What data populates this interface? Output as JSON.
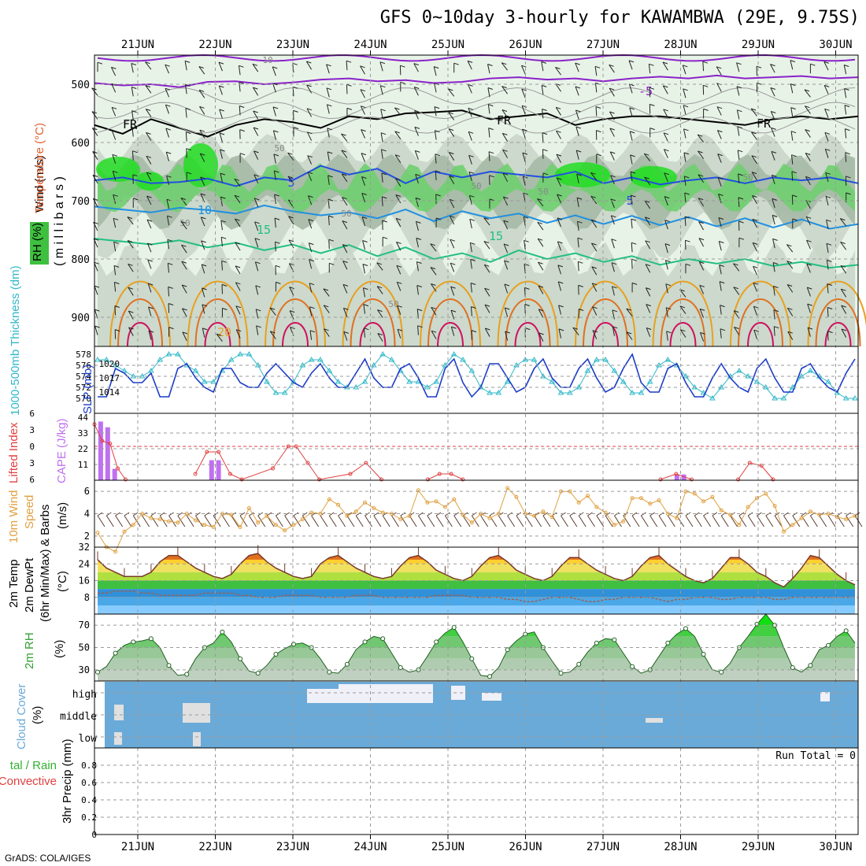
{
  "title": "GFS 0~10day 3-hourly for KAWAMBWA (29E, 9.75S)",
  "credit": "GrADS: COLA/IGES",
  "colors": {
    "grid": "#9a9a9a",
    "rh_fill": [
      "#e8f3e8",
      "#c9d6c9",
      "#a6b8a6",
      "#6fcf6f",
      "#22dd22"
    ],
    "temp_m5": "#8a22c8",
    "temp_5": "#2050e0",
    "temp_10": "#2090e0",
    "temp_15": "#22c080",
    "temp_20": "#e8a020",
    "temp_25": "#e07020",
    "temp_30": "#d01060",
    "slp": "#1a3cc8",
    "thickness": "#30b8c8",
    "cape": "#c070f0",
    "li": "#e04040",
    "wind": "#e0a040",
    "dewpt": "#a06050",
    "rh2m": "#40b040",
    "cloud": "#6aaad8"
  },
  "chart_data": [
    {
      "type": "heatmap",
      "name_panel": "upper-air",
      "xlabels": [
        "21JUN",
        "22JUN",
        "23JUN",
        "24JUN",
        "25JUN",
        "26JUN",
        "27JUN",
        "28JUN",
        "29JUN",
        "30JUN"
      ],
      "ylabel": "Wind (m/s)",
      "ylabel_temp": "Temperature (°C)",
      "ylabel_rh": "RH (%)",
      "ylabel_units": "(millibars)",
      "yticks": [
        500,
        600,
        700,
        800,
        900
      ],
      "ylim": [
        450,
        950
      ],
      "contour_labels": [
        "10",
        "-5",
        "FR",
        "FR",
        "FR",
        "50",
        "5",
        "50",
        "50",
        "5",
        "50",
        "10",
        "50",
        "50",
        "15",
        "15",
        "20",
        "50"
      ],
      "temp_levels": [
        {
          "label": "-5",
          "p": [
            498,
            502,
            500,
            505,
            496,
            495,
            500,
            497,
            492,
            490,
            495,
            493,
            498,
            496,
            490,
            488,
            492,
            490,
            495,
            490,
            487,
            490,
            485,
            490,
            488,
            486,
            490,
            488
          ]
        },
        {
          "label": "FR",
          "p": [
            570,
            585,
            560,
            575,
            590,
            570,
            560,
            565,
            575,
            555,
            560,
            550,
            548,
            545,
            560,
            555,
            550,
            570,
            560,
            555,
            555,
            560,
            565,
            570,
            560,
            555,
            560,
            555
          ]
        },
        {
          "label": "5",
          "p": [
            665,
            660,
            670,
            668,
            662,
            675,
            660,
            665,
            640,
            655,
            645,
            670,
            650,
            660,
            650,
            655,
            660,
            650,
            670,
            660,
            672,
            665,
            660,
            670,
            660,
            665,
            660,
            670
          ]
        },
        {
          "label": "10",
          "p": [
            710,
            715,
            720,
            712,
            716,
            722,
            708,
            718,
            725,
            720,
            730,
            715,
            735,
            718,
            730,
            722,
            738,
            725,
            740,
            726,
            742,
            728,
            744,
            730,
            746,
            732,
            748,
            740
          ]
        },
        {
          "label": "15",
          "p": [
            765,
            770,
            775,
            768,
            780,
            772,
            785,
            775,
            790,
            776,
            795,
            780,
            800,
            790,
            805,
            785,
            800,
            790,
            805,
            795,
            810,
            800,
            808,
            800,
            812,
            805,
            815,
            810
          ]
        }
      ]
    },
    {
      "type": "line",
      "name_panel": "slp-thickness",
      "ylabel_left": "1000-500mb Thickness (dm)",
      "ylabel_right": "SLP (mb)",
      "yticks_left": [
        570,
        572,
        574,
        576,
        578
      ],
      "yticks_right": [
        1014,
        1017,
        1020
      ],
      "series": [
        {
          "name": "SLP (mb)",
          "values": [
            1013,
            1013,
            1019,
            1018,
            1016,
            1016,
            1018,
            1013,
            1013,
            1019,
            1020,
            1017,
            1015,
            1014,
            1019,
            1019,
            1016,
            1015,
            1015,
            1018,
            1020,
            1018,
            1016,
            1015,
            1018,
            1020,
            1017,
            1015,
            1015,
            1018,
            1021,
            1017,
            1015,
            1015,
            1019,
            1020,
            1017,
            1013,
            1013,
            1019,
            1021,
            1016,
            1013,
            1015,
            1020,
            1020,
            1017,
            1014,
            1015,
            1019,
            1021,
            1017,
            1015,
            1015,
            1019,
            1021,
            1017,
            1014,
            1015,
            1019,
            1022,
            1016,
            1014,
            1014,
            1019,
            1020,
            1016,
            1013,
            1013,
            1017,
            1020,
            1017,
            1015,
            1014,
            1019,
            1021,
            1017,
            1014,
            1014,
            1019,
            1020,
            1017,
            1015,
            1014,
            1018,
            1021
          ]
        },
        {
          "name": "1000-500mb Thickness (dm)",
          "values": [
            577,
            577,
            576,
            575,
            574,
            574,
            575,
            577,
            578,
            578,
            576,
            575,
            573,
            573,
            575,
            577,
            578,
            578,
            576,
            573,
            571,
            571,
            573,
            576,
            577,
            577,
            575,
            573,
            572,
            572,
            573,
            576,
            578,
            577,
            575,
            573,
            573,
            572,
            573,
            576,
            578,
            577,
            575,
            572,
            571,
            571,
            573,
            576,
            577,
            577,
            574,
            573,
            571,
            571,
            572,
            575,
            577,
            577,
            575,
            573,
            571,
            571,
            573,
            576,
            577,
            576,
            574,
            572,
            571,
            570,
            572,
            574,
            575,
            574,
            573,
            572,
            570,
            570,
            572,
            574,
            575,
            574,
            573,
            571,
            570,
            570
          ]
        }
      ]
    },
    {
      "type": "bar",
      "name_panel": "cape-li",
      "ylabel_left": "Lifted Index",
      "ylabel_right": "CAPE (J/kg)",
      "yticks_left": [
        6,
        3,
        0,
        -3,
        -6
      ],
      "yticks_right": [
        11,
        22,
        33,
        44
      ],
      "ylim_cape": [
        0,
        44
      ],
      "cape_bars": [
        {
          "day": 0.05,
          "value": 41
        },
        {
          "day": 0.14,
          "value": 37
        },
        {
          "day": 0.23,
          "value": 8
        },
        {
          "day": 1.48,
          "value": 14
        },
        {
          "day": 1.57,
          "value": 14
        },
        {
          "day": 7.48,
          "value": 4
        },
        {
          "day": 7.57,
          "value": 4
        }
      ],
      "li_series": [
        {
          "day": 0.0,
          "value": -4
        },
        {
          "day": 0.1,
          "value": -1
        },
        {
          "day": 0.2,
          "value": -0.5
        },
        {
          "day": 0.3,
          "value": 4
        },
        {
          "day": 0.4,
          "value": 6
        },
        {
          "day": 1.3,
          "value": 5
        },
        {
          "day": 1.45,
          "value": 1
        },
        {
          "day": 1.6,
          "value": 1
        },
        {
          "day": 1.75,
          "value": 5
        },
        {
          "day": 1.9,
          "value": 6
        },
        {
          "day": 2.3,
          "value": 4
        },
        {
          "day": 2.5,
          "value": 0
        },
        {
          "day": 2.6,
          "value": 0
        },
        {
          "day": 2.75,
          "value": 3
        },
        {
          "day": 2.9,
          "value": 6
        },
        {
          "day": 3.3,
          "value": 5
        },
        {
          "day": 3.5,
          "value": 3
        },
        {
          "day": 3.7,
          "value": 6
        },
        {
          "day": 4.3,
          "value": 6
        },
        {
          "day": 4.45,
          "value": 5
        },
        {
          "day": 4.6,
          "value": 5
        },
        {
          "day": 4.75,
          "value": 6
        },
        {
          "day": 7.3,
          "value": 6
        },
        {
          "day": 7.5,
          "value": 5
        },
        {
          "day": 7.7,
          "value": 6
        },
        {
          "day": 8.3,
          "value": 6
        },
        {
          "day": 8.45,
          "value": 3
        },
        {
          "day": 8.6,
          "value": 3.5
        },
        {
          "day": 8.75,
          "value": 6
        }
      ]
    },
    {
      "type": "line",
      "name_panel": "wind10m",
      "ylabel": "10m Wind Speed & Barbs (m/s)",
      "yticks": [
        2,
        4,
        6
      ],
      "ylim": [
        1,
        7
      ],
      "values": [
        2.3,
        1.0,
        0.6,
        2.4,
        3.0,
        4.0,
        3.6,
        3.5,
        3.3,
        3.2,
        4.0,
        3.4,
        3.0,
        2.8,
        4.0,
        3.9,
        2.8,
        4.5,
        3.2,
        3.8,
        3.0,
        2.5,
        3.0,
        3.5,
        4.1,
        4.0,
        5.3,
        4.8,
        3.8,
        4.2,
        5.0,
        4.5,
        4.1,
        4.0,
        3.5,
        3.8,
        6.1,
        5.0,
        5.1,
        4.6,
        5.3,
        3.9,
        3.2,
        4.0,
        3.6,
        4.0,
        6.3,
        5.5,
        4.0,
        3.8,
        4.2,
        3.7,
        6.0,
        6.0,
        5.0,
        5.6,
        4.6,
        4.1,
        3.0,
        3.3,
        5.4,
        5.4,
        4.9,
        5.2,
        4.0,
        3.6,
        6.0,
        5.8,
        5.1,
        5.5,
        4.3,
        3.9,
        3.0,
        4.6,
        5.4,
        5.8,
        4.7,
        2.4,
        3.0,
        3.6,
        4.2,
        3.9,
        4.0,
        3.7,
        3.5,
        3.8
      ]
    },
    {
      "type": "area",
      "name_panel": "temp2m",
      "ylabel": "2m Temp 2m DewPt (6hr Min/Max) (°C)",
      "yticks": [
        8,
        16,
        24,
        32
      ],
      "ylim": [
        0,
        32
      ],
      "temp": [
        26,
        22,
        20,
        18,
        18,
        18,
        20,
        25,
        28,
        28,
        25,
        22,
        20,
        18,
        17,
        19,
        24,
        28,
        29,
        25,
        22,
        20,
        18,
        17,
        18,
        24,
        27,
        28,
        25,
        22,
        20,
        18,
        17,
        18,
        23,
        27,
        28,
        25,
        21,
        19,
        17,
        16,
        18,
        23,
        27,
        28,
        25,
        21,
        19,
        17,
        16,
        18,
        23,
        27,
        27,
        24,
        21,
        19,
        17,
        16,
        18,
        23,
        27,
        28,
        24,
        21,
        18,
        16,
        15,
        17,
        22,
        27,
        27,
        24,
        20,
        18,
        15,
        13,
        17,
        22,
        28,
        27,
        23,
        19,
        16,
        14
      ],
      "dewpt": [
        10,
        10,
        11,
        11,
        11,
        10,
        10,
        9,
        9,
        9,
        9,
        9,
        10,
        10,
        10,
        10,
        9,
        9,
        8,
        8,
        8,
        9,
        9,
        9,
        9,
        8,
        8,
        8,
        8,
        9,
        9,
        9,
        8,
        8,
        8,
        8,
        8,
        8,
        9,
        9,
        9,
        9,
        8,
        8,
        8,
        8,
        7,
        7,
        6,
        6,
        7,
        8,
        8,
        8,
        7,
        6,
        6,
        7,
        7,
        8,
        8,
        8,
        8,
        7,
        6,
        7,
        7,
        8,
        8,
        8,
        7,
        7,
        8,
        8,
        8,
        8,
        7,
        7,
        8,
        8,
        8,
        8,
        8,
        8,
        8,
        8
      ]
    },
    {
      "type": "area",
      "name_panel": "rh2m",
      "ylabel": "2m RH (%)",
      "yticks": [
        30,
        50,
        70
      ],
      "ylim": [
        20,
        80
      ],
      "values": [
        28,
        33,
        45,
        52,
        55,
        56,
        58,
        50,
        34,
        25,
        26,
        40,
        50,
        54,
        64,
        55,
        40,
        29,
        27,
        34,
        44,
        49,
        53,
        54,
        50,
        40,
        28,
        27,
        35,
        48,
        55,
        60,
        58,
        45,
        32,
        28,
        30,
        42,
        55,
        63,
        68,
        55,
        40,
        25,
        24,
        32,
        48,
        56,
        62,
        64,
        50,
        38,
        27,
        28,
        35,
        46,
        54,
        58,
        57,
        45,
        33,
        27,
        30,
        42,
        54,
        62,
        67,
        60,
        44,
        30,
        28,
        36,
        50,
        60,
        71,
        80,
        70,
        50,
        32,
        28,
        34,
        48,
        52,
        60,
        65,
        54
      ]
    },
    {
      "type": "heatmap",
      "name_panel": "cloud",
      "ylabel": "Cloud Cover (%)",
      "categories": [
        "high",
        "middle",
        "low"
      ]
    },
    {
      "type": "bar",
      "name_panel": "precip",
      "ylabel": "3hr Precip (mm)",
      "ylabel_total": "Total / Rain",
      "ylabel_conv": "Convective",
      "yticks": [
        0,
        0.2,
        0.4,
        0.6,
        0.8
      ],
      "ylim": [
        0,
        1
      ],
      "run_total": "Run Total = 0",
      "values": []
    }
  ],
  "ylabels": {
    "wind": "Wind (m/s)",
    "temperature": "Temperature (°C)",
    "rh": "RH (%)",
    "pressure": "( m i l l i b a r s )",
    "thickness": "1000-500mb Thickness (dm)",
    "slp": "SLP (mb)",
    "lifted_index": "Lifted Index",
    "cape": "CAPE (J/kg)",
    "wind10m_a": "10m Wind",
    "wind10m_b": "Speed",
    "wind10m_c": "& Barbs",
    "wind10m_units": "(m/s)",
    "temp_a": "2m Temp",
    "temp_b": "2m DewPt",
    "temp_c": "(6hr Min/Max)",
    "temp_units": "(°C)",
    "rh2m": "2m RH",
    "rh2m_units": "(%)",
    "cloud": "Cloud Cover",
    "cloud_units": "(%)",
    "precip": "3hr Precip (mm)",
    "precip_total": "tal / Rain",
    "precip_conv": "Convective"
  }
}
